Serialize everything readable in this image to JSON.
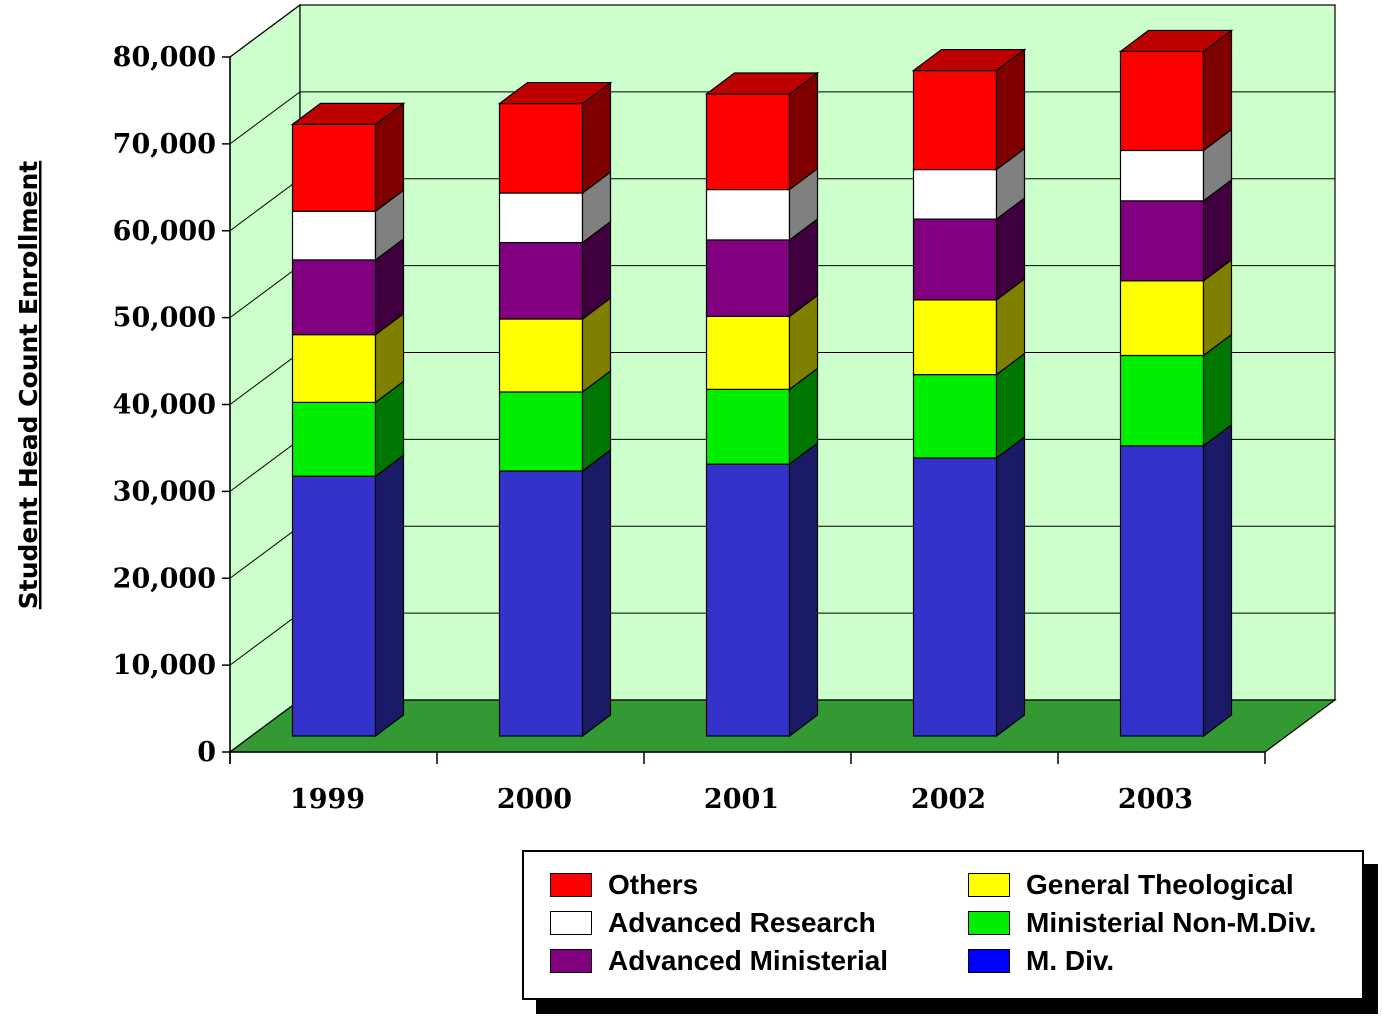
{
  "chart_data": {
    "type": "bar",
    "stacked": true,
    "three_d": true,
    "title": "",
    "xlabel": "",
    "ylabel": "Student Head Count Enrollment",
    "ylim": [
      0,
      80000
    ],
    "yticks": [
      "0",
      "10,000",
      "20,000",
      "30,000",
      "40,000",
      "50,000",
      "60,000",
      "70,000",
      "80,000"
    ],
    "categories": [
      "1999",
      "2000",
      "2001",
      "2002",
      "2003"
    ],
    "series": [
      {
        "name": "M. Div.",
        "color": "#3333cc",
        "legend_color": "#0000ff",
        "values": [
          29900,
          30500,
          31300,
          32000,
          33400
        ]
      },
      {
        "name": "Ministerial Non-M.Div.",
        "color": "#00ee00",
        "values": [
          8500,
          9100,
          8600,
          9600,
          10400
        ]
      },
      {
        "name": "General Theological",
        "color": "#ffff00",
        "values": [
          7800,
          8400,
          8400,
          8600,
          8600
        ]
      },
      {
        "name": "Advanced Ministerial",
        "color": "#800080",
        "values": [
          8600,
          8800,
          8800,
          9300,
          9200
        ]
      },
      {
        "name": "Advanced Research",
        "color": "#ffffff",
        "values": [
          5600,
          5700,
          5800,
          5700,
          5800
        ]
      },
      {
        "name": "Others",
        "color": "#ff0000",
        "values": [
          10000,
          10300,
          11000,
          11400,
          11400
        ]
      }
    ],
    "grid": true,
    "wall_color": "#ccffcc",
    "floor_color": "#339933",
    "legend_position": "bottom-right"
  }
}
